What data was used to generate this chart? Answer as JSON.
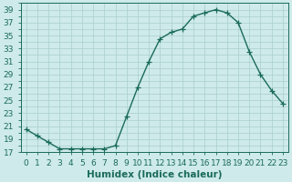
{
  "x": [
    0,
    1,
    2,
    3,
    4,
    5,
    6,
    7,
    8,
    9,
    10,
    11,
    12,
    13,
    14,
    15,
    16,
    17,
    18,
    19,
    20,
    21,
    22,
    23
  ],
  "y": [
    20.5,
    19.5,
    18.5,
    17.5,
    17.5,
    17.5,
    17.5,
    17.5,
    18.0,
    22.5,
    27.0,
    31.0,
    34.5,
    35.5,
    36.0,
    38.0,
    38.5,
    39.0,
    38.5,
    37.0,
    32.5,
    29.0,
    26.5,
    24.5
  ],
  "line_color": "#1a6b5a",
  "marker": "+",
  "marker_size": 4,
  "background_color": "#ceeaea",
  "grid_color": "#aacece",
  "xlabel": "Humidex (Indice chaleur)",
  "xlim": [
    -0.5,
    23.5
  ],
  "ylim": [
    17,
    40
  ],
  "yticks": [
    17,
    19,
    21,
    23,
    25,
    27,
    29,
    31,
    33,
    35,
    37,
    39
  ],
  "xticks": [
    0,
    1,
    2,
    3,
    4,
    5,
    6,
    7,
    8,
    9,
    10,
    11,
    12,
    13,
    14,
    15,
    16,
    17,
    18,
    19,
    20,
    21,
    22,
    23
  ],
  "tick_label_fontsize": 6.5,
  "xlabel_fontsize": 7.5,
  "line_width": 1.0
}
